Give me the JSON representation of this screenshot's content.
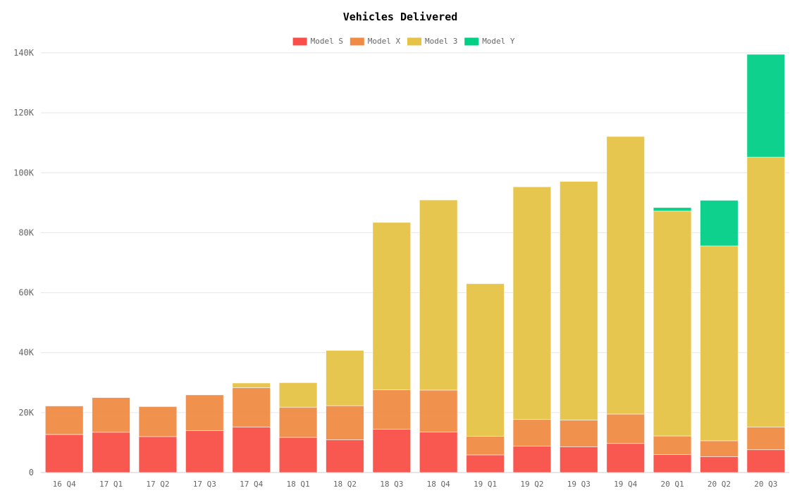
{
  "chart_data": {
    "type": "bar",
    "stacked": true,
    "title": "Vehicles Delivered",
    "xlabel": "",
    "ylabel": "",
    "categories": [
      "16 Q4",
      "17 Q1",
      "17 Q2",
      "17 Q3",
      "17 Q4",
      "18 Q1",
      "18 Q2",
      "18 Q3",
      "18 Q4",
      "19 Q1",
      "19 Q2",
      "19 Q3",
      "19 Q4",
      "20 Q1",
      "20 Q2",
      "20 Q3"
    ],
    "series": [
      {
        "name": "Model S",
        "color": "#f94f48",
        "values": [
          12700,
          13450,
          12000,
          14000,
          15200,
          11730,
          10930,
          14470,
          13500,
          5900,
          8800,
          8600,
          9700,
          6000,
          5300,
          7600
        ]
      },
      {
        "name": "Model X",
        "color": "#f08b45",
        "values": [
          9500,
          11550,
          10000,
          11900,
          13120,
          10070,
          11370,
          13130,
          14000,
          6200,
          8900,
          8900,
          9800,
          6200,
          5300,
          7600
        ]
      },
      {
        "name": "Model 3",
        "color": "#e6c346",
        "values": [
          0,
          0,
          0,
          0,
          1550,
          8180,
          18440,
          55840,
          63400,
          50900,
          77600,
          79600,
          92600,
          75000,
          65000,
          90000
        ]
      },
      {
        "name": "Model Y",
        "color": "#00cf86",
        "values": [
          0,
          0,
          0,
          0,
          0,
          0,
          0,
          0,
          0,
          0,
          0,
          0,
          0,
          1200,
          15200,
          34300
        ]
      }
    ],
    "ylim": [
      0,
      140000
    ],
    "y_ticks": [
      {
        "value": 0,
        "label": "0"
      },
      {
        "value": 20000,
        "label": "20K"
      },
      {
        "value": 40000,
        "label": "40K"
      },
      {
        "value": 60000,
        "label": "60K"
      },
      {
        "value": 80000,
        "label": "80K"
      },
      {
        "value": 100000,
        "label": "100K"
      },
      {
        "value": 120000,
        "label": "120K"
      },
      {
        "value": 140000,
        "label": "140K"
      }
    ],
    "grid": true,
    "legend_position": "top-center"
  }
}
